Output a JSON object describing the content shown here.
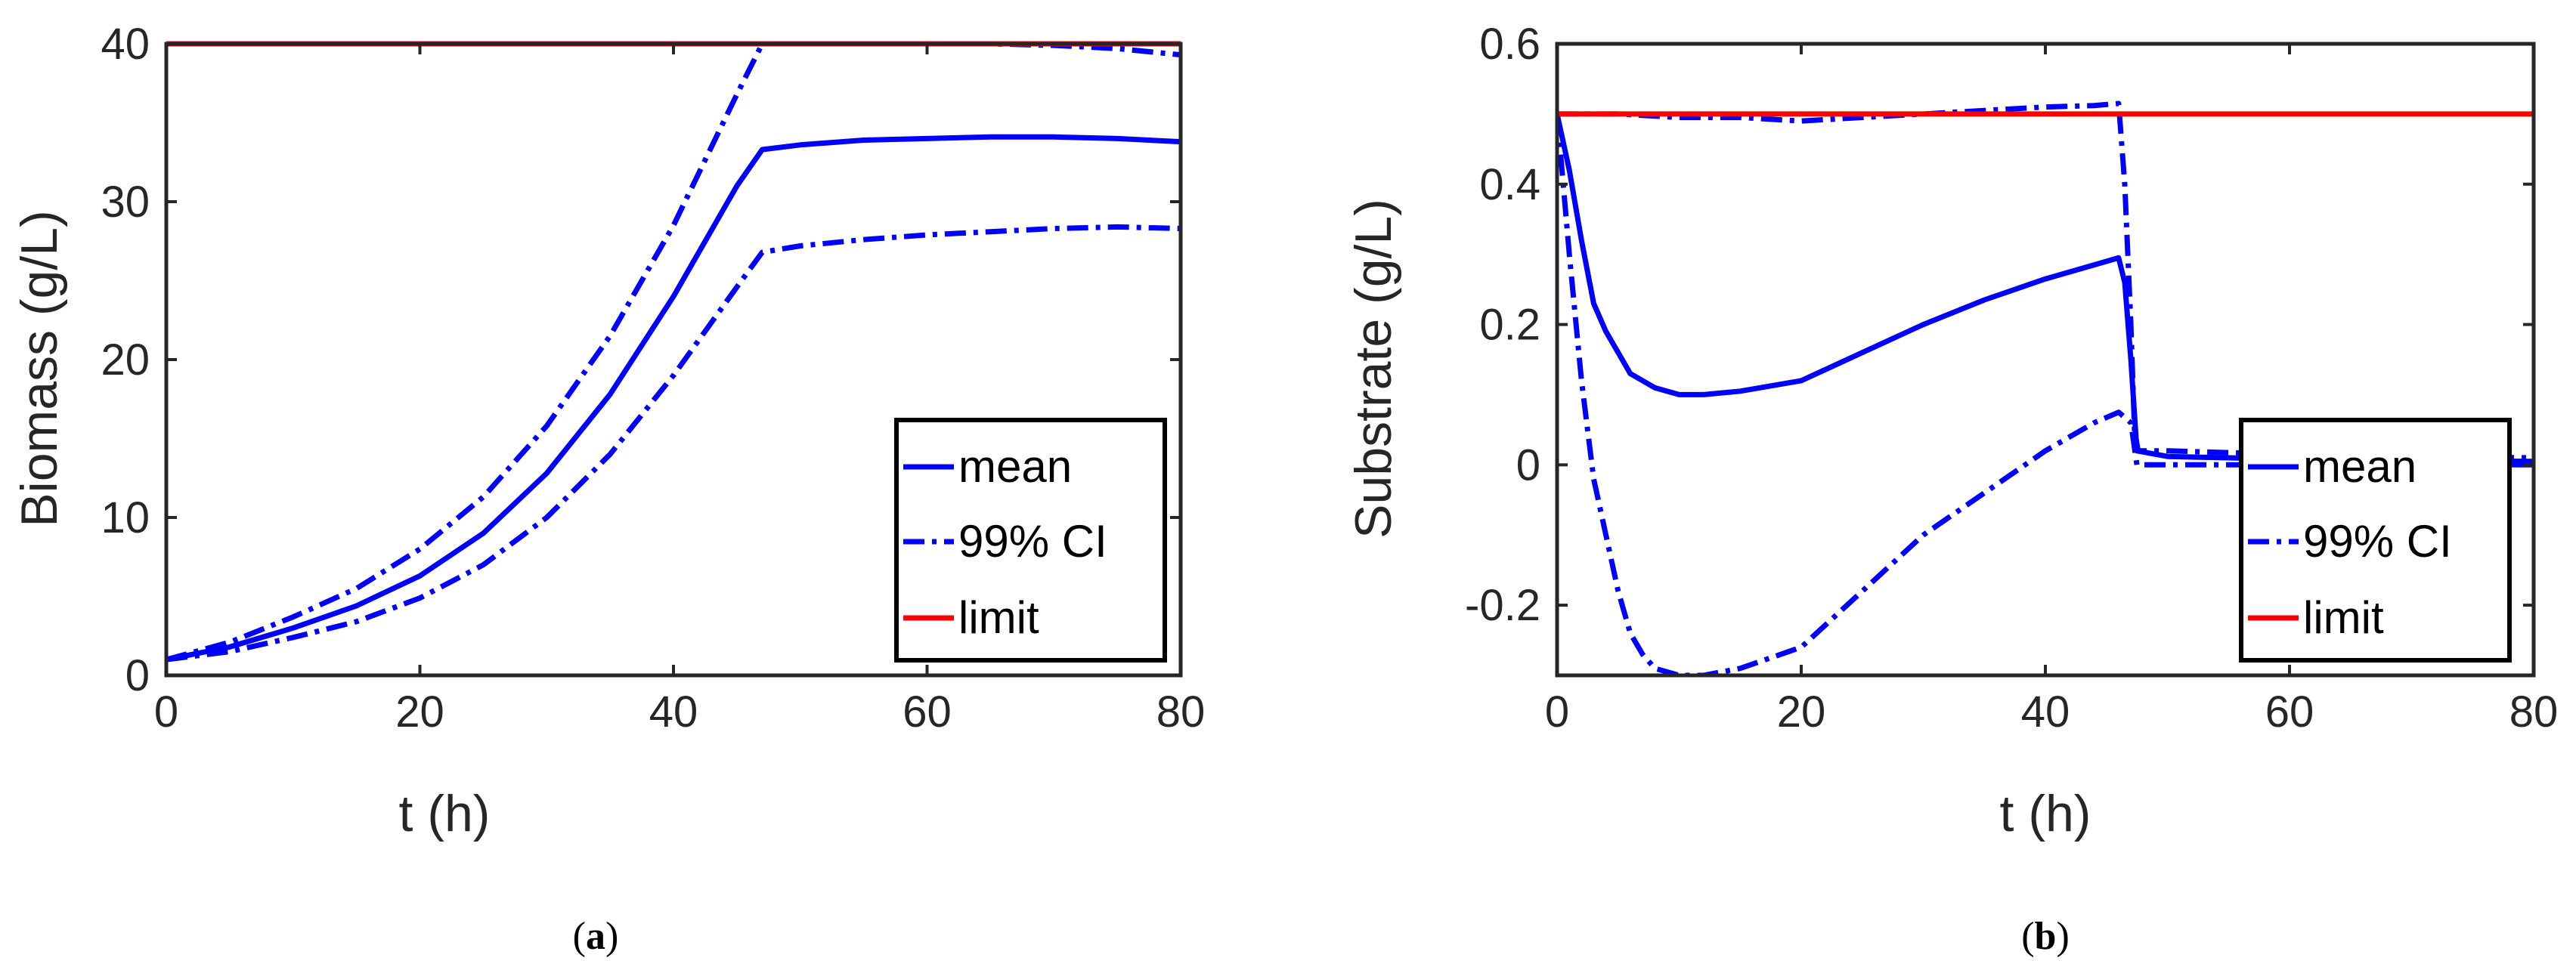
{
  "colors": {
    "series_blue": "#0000FF",
    "limit_red": "#FF0000",
    "axis": "#262626"
  },
  "chart_data": [
    {
      "type": "line",
      "panel": "a",
      "caption_label": "a",
      "xlabel": "t (h)",
      "ylabel": "Biomass (g/L)",
      "xlim": [
        0,
        80
      ],
      "ylim": [
        0,
        40
      ],
      "xticks": [
        0,
        20,
        40,
        60,
        80
      ],
      "yticks": [
        0,
        10,
        20,
        30,
        40
      ],
      "legend_position": "bottom-right",
      "legend": [
        "mean",
        "99% CI",
        "limit"
      ],
      "series": [
        {
          "name": "mean",
          "style": "solid",
          "color": "#0000FF",
          "x": [
            0,
            5,
            10,
            15,
            20,
            25,
            30,
            35,
            40,
            45,
            47,
            50,
            55,
            60,
            65,
            70,
            75,
            80
          ],
          "y": [
            1,
            1.8,
            3.0,
            4.4,
            6.3,
            9.0,
            12.8,
            17.8,
            24.0,
            31.0,
            33.3,
            33.6,
            33.9,
            34.0,
            34.1,
            34.1,
            34.0,
            33.8
          ]
        },
        {
          "name": "99% CI upper",
          "style": "dashdot",
          "color": "#0000FF",
          "x": [
            0,
            5,
            10,
            15,
            20,
            25,
            30,
            35,
            40,
            45,
            47,
            50,
            55,
            60,
            65,
            70,
            75,
            80
          ],
          "y": [
            1,
            2.1,
            3.7,
            5.5,
            8.0,
            11.3,
            15.8,
            21.5,
            28.5,
            36.8,
            40,
            40,
            40,
            40,
            40,
            39.9,
            39.7,
            39.3
          ]
        },
        {
          "name": "99% CI lower",
          "style": "dashdot",
          "color": "#0000FF",
          "x": [
            0,
            5,
            10,
            15,
            20,
            25,
            30,
            35,
            40,
            45,
            47,
            50,
            55,
            60,
            65,
            70,
            75,
            80
          ],
          "y": [
            1,
            1.5,
            2.4,
            3.4,
            4.9,
            7.0,
            10.0,
            14.0,
            19.0,
            24.6,
            26.8,
            27.2,
            27.6,
            27.9,
            28.1,
            28.3,
            28.4,
            28.3
          ]
        },
        {
          "name": "limit",
          "style": "solid",
          "color": "#FF0000",
          "x": [
            0,
            80
          ],
          "y": [
            40,
            40
          ]
        }
      ]
    },
    {
      "type": "line",
      "panel": "b",
      "caption_label": "b",
      "xlabel": "t (h)",
      "ylabel": "Substrate (g/L)",
      "xlim": [
        0,
        80
      ],
      "ylim": [
        -0.3,
        0.6
      ],
      "xticks": [
        0,
        20,
        40,
        60,
        80
      ],
      "yticks": [
        -0.2,
        0,
        0.2,
        0.4,
        0.6
      ],
      "ytick_labels": [
        "-0.2",
        "0",
        "0.2",
        "0.4",
        "0.6"
      ],
      "legend_position": "bottom-right",
      "legend": [
        "mean",
        "99% CI",
        "limit"
      ],
      "series": [
        {
          "name": "mean",
          "style": "solid",
          "color": "#0000FF",
          "x": [
            0,
            1,
            2,
            3,
            4,
            5,
            6,
            7,
            8,
            10,
            12,
            15,
            20,
            25,
            30,
            35,
            40,
            44,
            46,
            46.5,
            47,
            47.5,
            50,
            60,
            70,
            80
          ],
          "y": [
            0.5,
            0.42,
            0.32,
            0.23,
            0.19,
            0.16,
            0.13,
            0.12,
            0.11,
            0.1,
            0.1,
            0.105,
            0.12,
            0.16,
            0.2,
            0.235,
            0.265,
            0.285,
            0.295,
            0.26,
            0.15,
            0.02,
            0.012,
            0.008,
            0.006,
            0.005
          ]
        },
        {
          "name": "99% CI upper",
          "style": "dashdot",
          "color": "#0000FF",
          "x": [
            0,
            5,
            10,
            15,
            20,
            25,
            30,
            35,
            40,
            44,
            46,
            46.5,
            47,
            47.3,
            47.6,
            50,
            60,
            70,
            80
          ],
          "y": [
            0.5,
            0.5,
            0.495,
            0.495,
            0.49,
            0.495,
            0.5,
            0.505,
            0.51,
            0.512,
            0.515,
            0.4,
            0.2,
            0.05,
            0.02,
            0.02,
            0.015,
            0.012,
            0.01
          ]
        },
        {
          "name": "99% CI lower",
          "style": "dashdot",
          "color": "#0000FF",
          "x": [
            0,
            1,
            2,
            3,
            4,
            5,
            6,
            7,
            8,
            10,
            12,
            15,
            20,
            25,
            30,
            35,
            40,
            44,
            46,
            47,
            47.5,
            50,
            60,
            70,
            80
          ],
          "y": [
            0.5,
            0.3,
            0.12,
            -0.02,
            -0.1,
            -0.18,
            -0.24,
            -0.27,
            -0.29,
            -0.3,
            -0.3,
            -0.29,
            -0.26,
            -0.18,
            -0.1,
            -0.04,
            0.02,
            0.06,
            0.075,
            0.06,
            0.0,
            0.0,
            0.0,
            0.0,
            0.0
          ]
        },
        {
          "name": "limit",
          "style": "solid",
          "color": "#FF0000",
          "x": [
            0,
            80
          ],
          "y": [
            0.5,
            0.5
          ]
        }
      ]
    }
  ]
}
